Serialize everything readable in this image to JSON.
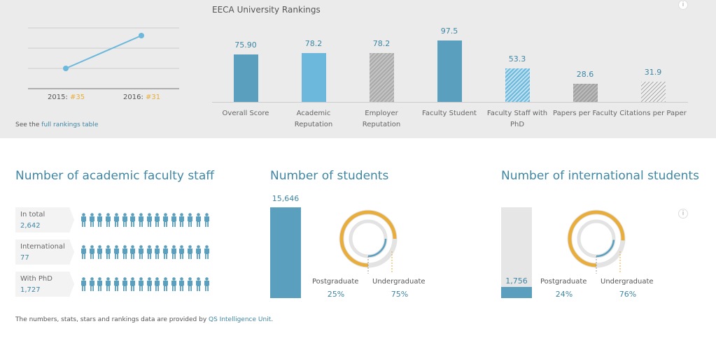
{
  "rank_history": {
    "points": [
      {
        "year": "2015",
        "rank": "#35"
      },
      {
        "year": "2016",
        "rank": "#31"
      }
    ],
    "see_text": "See the ",
    "link_text": "full rankings table"
  },
  "chart_data": {
    "type": "bar",
    "title": "EECA University Rankings",
    "categories": [
      "Overall Score",
      "Academic Reputation",
      "Employer Reputation",
      "Faculty Student",
      "Faculty Staff with PhD",
      "Papers per Faculty",
      "Citations per Paper"
    ],
    "values": [
      75.9,
      78.2,
      78.2,
      97.5,
      53.3,
      28.6,
      31.9
    ],
    "value_labels": [
      "75.90",
      "78.2",
      "78.2",
      "97.5",
      "53.3",
      "28.6",
      "31.9"
    ],
    "ylim": [
      0,
      100
    ]
  },
  "faculty": {
    "title": "Number of academic faculty staff",
    "rows": [
      {
        "label": "In total",
        "value": "2,642"
      },
      {
        "label": "International",
        "value": "77"
      },
      {
        "label": "With PhD",
        "value": "1,727"
      }
    ]
  },
  "students": {
    "title": "Number of students",
    "total": "15,646",
    "fill": 1.0,
    "postgrad_label": "Postgraduate",
    "postgrad_pct": "25%",
    "undergrad_label": "Undergraduate",
    "undergrad_pct": "75%",
    "postgrad": 25
  },
  "intl": {
    "title": "Number of international students",
    "total": "1,756",
    "fill": 0.12,
    "postgrad_label": "Postgraduate",
    "postgrad_pct": "24%",
    "undergrad_label": "Undergraduate",
    "undergrad_pct": "76%",
    "postgrad": 24
  },
  "footer": {
    "text": "The numbers, stats, stars and rankings data are provided by ",
    "link": "QS Intelligence Unit",
    "end": "."
  },
  "info_icon": "i",
  "colors": {
    "blue": "#5a9fbd",
    "light_blue": "#6bb8dc",
    "gray": "#b0b0b0",
    "orange": "#e8ad3a",
    "text_blue": "#3f86a3"
  }
}
